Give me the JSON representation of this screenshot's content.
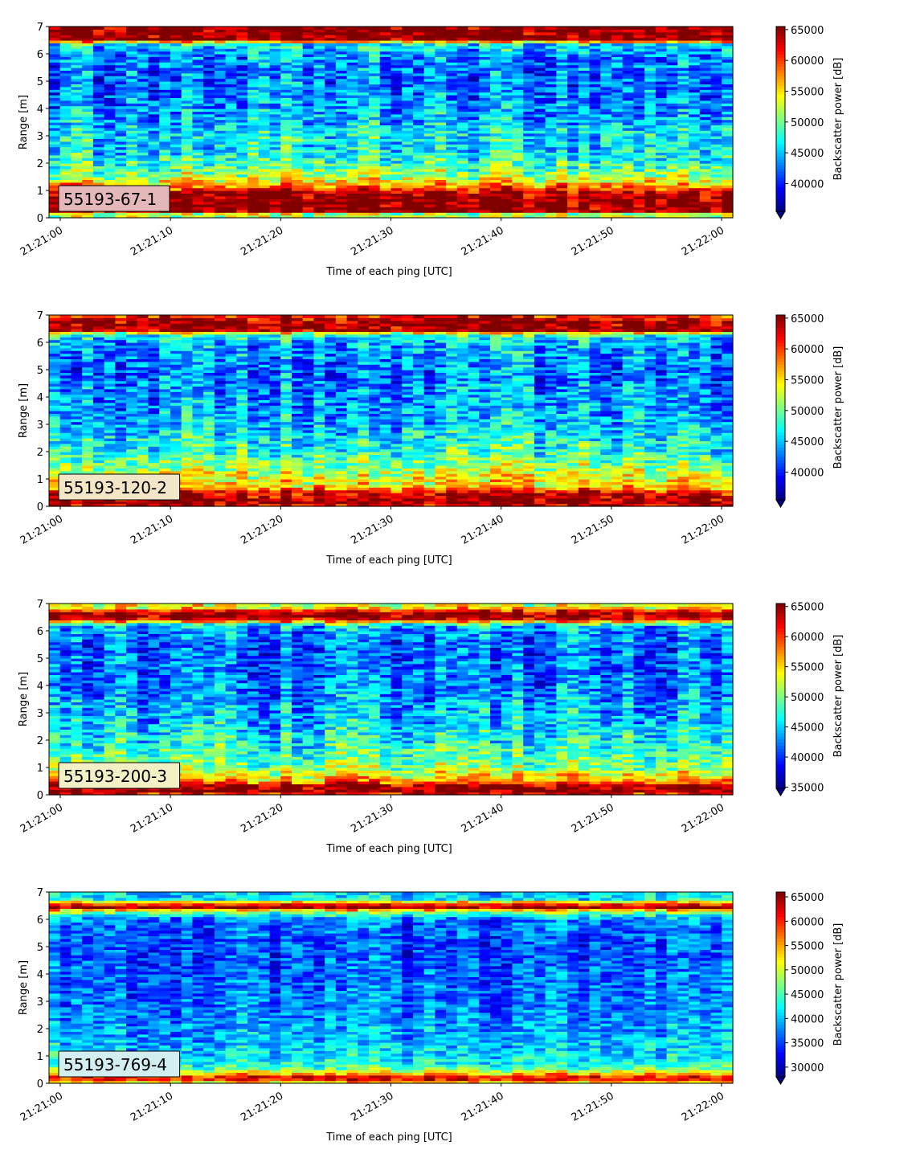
{
  "figure": {
    "colormap": "jet",
    "jet_stops": [
      "#000080",
      "#0000ff",
      "#0080ff",
      "#00ffff",
      "#80ff80",
      "#ffff00",
      "#ff8000",
      "#ff0000",
      "#800000"
    ]
  },
  "chart_data": [
    {
      "type": "heatmap",
      "label": "55193-67-1",
      "label_box_color": "#e4b8b8",
      "xlabel": "Time of each ping [UTC]",
      "ylabel": "Range [m]",
      "colorbar_label": "Backscatter power [dB]",
      "x_range": [
        "21:21:00",
        "21:22:00"
      ],
      "x_ticks": [
        "21:21:00",
        "21:21:10",
        "21:21:20",
        "21:21:30",
        "21:21:40",
        "21:21:50",
        "21:22:00"
      ],
      "ylim": [
        0,
        7
      ],
      "y_ticks": [
        "0",
        "1",
        "2",
        "3",
        "4",
        "5",
        "6",
        "7"
      ],
      "clim": [
        35500,
        65500
      ],
      "cbar_ticks": [
        40000,
        45000,
        50000,
        55000,
        60000,
        65000
      ],
      "cbar_tick_labels": [
        "40000",
        "45000",
        "50000",
        "55000",
        "60000",
        "65000"
      ],
      "cbar_extend": "min",
      "range_profile": [
        {
          "range": 0.2,
          "power": 52000
        },
        {
          "range": 0.25,
          "power": 65500
        },
        {
          "range": 0.9,
          "power": 65000
        },
        {
          "range": 1.1,
          "power": 59000
        },
        {
          "range": 1.5,
          "power": 52000
        },
        {
          "range": 2.0,
          "power": 48500
        },
        {
          "range": 2.5,
          "power": 46000
        },
        {
          "range": 3.0,
          "power": 46500
        },
        {
          "range": 4.0,
          "power": 43500
        },
        {
          "range": 5.0,
          "power": 42500
        },
        {
          "range": 6.0,
          "power": 43500
        },
        {
          "range": 6.4,
          "power": 47000
        },
        {
          "range": 6.5,
          "power": 65500
        },
        {
          "range": 7.0,
          "power": 65500
        }
      ]
    },
    {
      "type": "heatmap",
      "label": "55193-120-2",
      "label_box_color": "#f3e6c6",
      "xlabel": "Time of each ping [UTC]",
      "ylabel": "Range [m]",
      "colorbar_label": "Backscatter power [dB]",
      "x_range": [
        "21:21:00",
        "21:22:00"
      ],
      "x_ticks": [
        "21:21:00",
        "21:21:10",
        "21:21:20",
        "21:21:30",
        "21:21:40",
        "21:21:50",
        "21:22:00"
      ],
      "ylim": [
        0,
        7
      ],
      "y_ticks": [
        "0",
        "1",
        "2",
        "3",
        "4",
        "5",
        "6",
        "7"
      ],
      "clim": [
        35500,
        65500
      ],
      "cbar_ticks": [
        40000,
        45000,
        50000,
        55000,
        60000,
        65000
      ],
      "cbar_tick_labels": [
        "40000",
        "45000",
        "50000",
        "55000",
        "60000",
        "65000"
      ],
      "cbar_extend": "min",
      "range_profile": [
        {
          "range": 0.0,
          "power": 62000
        },
        {
          "range": 0.15,
          "power": 65500
        },
        {
          "range": 0.5,
          "power": 63000
        },
        {
          "range": 0.7,
          "power": 56000
        },
        {
          "range": 1.0,
          "power": 54000
        },
        {
          "range": 1.5,
          "power": 51000
        },
        {
          "range": 2.0,
          "power": 48000
        },
        {
          "range": 2.5,
          "power": 46500
        },
        {
          "range": 3.5,
          "power": 44000
        },
        {
          "range": 5.0,
          "power": 42500
        },
        {
          "range": 6.0,
          "power": 44500
        },
        {
          "range": 6.3,
          "power": 48000
        },
        {
          "range": 6.45,
          "power": 65000
        },
        {
          "range": 6.8,
          "power": 65000
        },
        {
          "range": 7.0,
          "power": 60000
        }
      ]
    },
    {
      "type": "heatmap",
      "label": "55193-200-3",
      "label_box_color": "#f3f0c6",
      "xlabel": "Time of each ping [UTC]",
      "ylabel": "Range [m]",
      "colorbar_label": "Backscatter power [dB]",
      "x_range": [
        "21:21:00",
        "21:22:00"
      ],
      "x_ticks": [
        "21:21:00",
        "21:21:10",
        "21:21:20",
        "21:21:30",
        "21:21:40",
        "21:21:50",
        "21:22:00"
      ],
      "ylim": [
        0,
        7
      ],
      "y_ticks": [
        "0",
        "1",
        "2",
        "3",
        "4",
        "5",
        "6",
        "7"
      ],
      "clim": [
        34800,
        65500
      ],
      "cbar_ticks": [
        35000,
        40000,
        45000,
        50000,
        55000,
        60000,
        65000
      ],
      "cbar_tick_labels": [
        "35000",
        "40000",
        "45000",
        "50000",
        "55000",
        "60000",
        "65000"
      ],
      "cbar_extend": "min",
      "range_profile": [
        {
          "range": 0.0,
          "power": 60000
        },
        {
          "range": 0.15,
          "power": 65500
        },
        {
          "range": 0.35,
          "power": 64000
        },
        {
          "range": 0.5,
          "power": 57000
        },
        {
          "range": 1.0,
          "power": 50500
        },
        {
          "range": 1.5,
          "power": 48500
        },
        {
          "range": 2.0,
          "power": 46500
        },
        {
          "range": 3.0,
          "power": 44000
        },
        {
          "range": 4.0,
          "power": 42000
        },
        {
          "range": 5.5,
          "power": 41500
        },
        {
          "range": 6.2,
          "power": 44000
        },
        {
          "range": 6.35,
          "power": 56000
        },
        {
          "range": 6.5,
          "power": 65500
        },
        {
          "range": 6.7,
          "power": 64000
        },
        {
          "range": 6.85,
          "power": 55000
        },
        {
          "range": 7.0,
          "power": 52000
        }
      ]
    },
    {
      "type": "heatmap",
      "label": "55193-769-4",
      "label_box_color": "#d2eef0",
      "xlabel": "Time of each ping [UTC]",
      "ylabel": "Range [m]",
      "colorbar_label": "Backscatter power [dB]",
      "x_range": [
        "21:21:00",
        "21:22:00"
      ],
      "x_ticks": [
        "21:21:00",
        "21:21:10",
        "21:21:20",
        "21:21:30",
        "21:21:40",
        "21:21:50",
        "21:22:00"
      ],
      "ylim": [
        0,
        7
      ],
      "y_ticks": [
        "0",
        "1",
        "2",
        "3",
        "4",
        "5",
        "6",
        "7"
      ],
      "clim": [
        28000,
        66000
      ],
      "cbar_ticks": [
        30000,
        35000,
        40000,
        45000,
        50000,
        55000,
        60000,
        65000
      ],
      "cbar_tick_labels": [
        "30000",
        "35000",
        "40000",
        "45000",
        "50000",
        "55000",
        "60000",
        "65000"
      ],
      "cbar_extend": "min",
      "range_profile": [
        {
          "range": 0.0,
          "power": 50000
        },
        {
          "range": 0.2,
          "power": 64000
        },
        {
          "range": 0.3,
          "power": 56000
        },
        {
          "range": 0.6,
          "power": 44000
        },
        {
          "range": 1.0,
          "power": 41000
        },
        {
          "range": 2.0,
          "power": 38500
        },
        {
          "range": 3.5,
          "power": 36500
        },
        {
          "range": 5.0,
          "power": 35500
        },
        {
          "range": 6.0,
          "power": 37000
        },
        {
          "range": 6.3,
          "power": 48000
        },
        {
          "range": 6.45,
          "power": 65000
        },
        {
          "range": 6.6,
          "power": 58000
        },
        {
          "range": 6.75,
          "power": 42000
        },
        {
          "range": 7.0,
          "power": 40000
        }
      ]
    }
  ]
}
